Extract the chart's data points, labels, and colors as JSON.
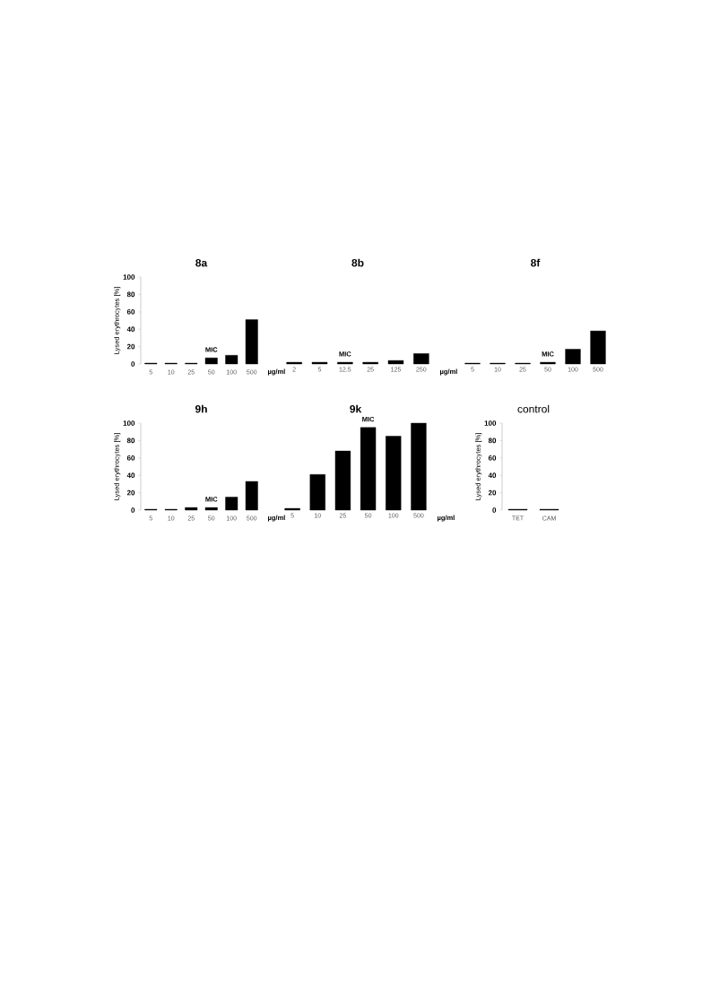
{
  "chart_data": [
    {
      "type": "bar",
      "title": "8a",
      "categories": [
        "5",
        "10",
        "25",
        "50",
        "100",
        "500"
      ],
      "values": [
        1,
        1,
        1,
        7,
        10,
        51
      ],
      "color": "#000000",
      "ylim": [
        0,
        100
      ],
      "yticks": [
        0,
        20,
        40,
        60,
        80,
        100
      ],
      "ylabel": "Lysed erythrocytes [%]",
      "xlabel": "µg/ml",
      "annotations": [
        {
          "text": "MIC",
          "x": "50",
          "y": 7
        }
      ]
    },
    {
      "type": "bar",
      "title": "8b",
      "categories": [
        "2",
        "5",
        "12.5",
        "25",
        "125",
        "250"
      ],
      "values": [
        2,
        2,
        2,
        2,
        4,
        12
      ],
      "color": "#000000",
      "ylim": [
        0,
        100
      ],
      "xlabel": "µg/ml",
      "tick_labels": "x",
      "annotations": [
        {
          "text": "MIC",
          "x": "12.5",
          "y": 2
        }
      ]
    },
    {
      "type": "bar",
      "title": "8f",
      "categories": [
        "5",
        "10",
        "25",
        "50",
        "100",
        "500"
      ],
      "values": [
        1,
        1,
        1,
        2,
        17,
        38
      ],
      "color": "#000000",
      "ylim": [
        0,
        100
      ],
      "tick_labels": "x",
      "annotations": [
        {
          "text": "MIC",
          "x": "50",
          "y": 2
        }
      ]
    },
    {
      "type": "bar",
      "title": "9h",
      "categories": [
        "5",
        "10",
        "25",
        "50",
        "100",
        "500"
      ],
      "values": [
        1,
        1,
        3,
        3,
        15,
        33
      ],
      "color": "#000000",
      "ylim": [
        0,
        100
      ],
      "yticks": [
        0,
        20,
        40,
        60,
        80,
        100
      ],
      "ylabel": "Lysed erythrocytes [%]",
      "xlabel": "µg/ml",
      "annotations": [
        {
          "text": "MIC",
          "x": "50",
          "y": 3
        }
      ]
    },
    {
      "type": "bar",
      "title": "9k",
      "categories": [
        "5",
        "10",
        "25",
        "50",
        "100",
        "500"
      ],
      "values": [
        2,
        41,
        68,
        95,
        85,
        100
      ],
      "color": "#000000",
      "ylim": [
        0,
        100
      ],
      "xlabel": "µg/ml",
      "tick_labels": "x",
      "annotations": [
        {
          "text": "MIC",
          "x": "50",
          "y": 95
        }
      ]
    },
    {
      "type": "bar",
      "title": "control",
      "categories": [
        "TET",
        "CAM"
      ],
      "values": [
        1,
        1
      ],
      "color": "#000000",
      "ylim": [
        0,
        100
      ],
      "yticks": [
        0,
        20,
        40,
        60,
        80,
        100
      ],
      "ylabel": "Lysed erythrocytes [%]"
    }
  ]
}
